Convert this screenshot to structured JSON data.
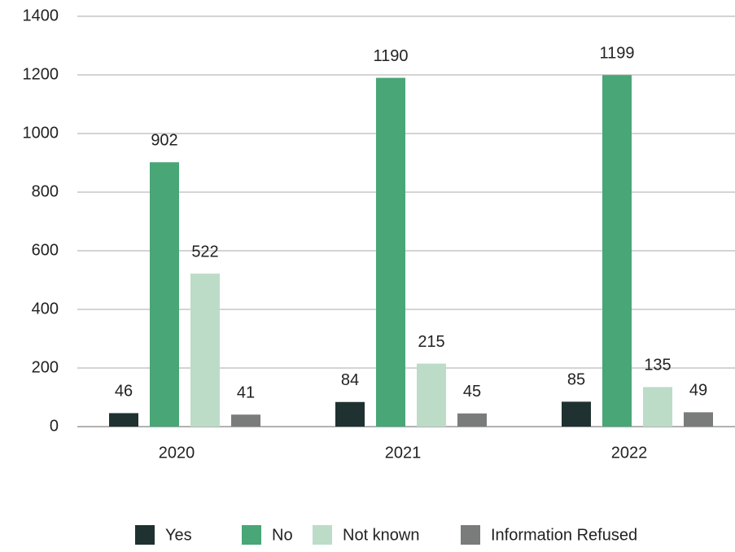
{
  "chart_data": {
    "type": "bar",
    "categories": [
      "2020",
      "2021",
      "2022"
    ],
    "series": [
      {
        "name": "Yes",
        "color": "#1f3131",
        "values": [
          46,
          84,
          85
        ]
      },
      {
        "name": "No",
        "color": "#48a677",
        "values": [
          902,
          1190,
          1199
        ]
      },
      {
        "name": "Not known",
        "color": "#bcdcc8",
        "values": [
          522,
          215,
          135
        ]
      },
      {
        "name": "Information Refused",
        "color": "#7a7c7c",
        "values": [
          41,
          45,
          49
        ]
      }
    ],
    "ylim": [
      0,
      1400
    ],
    "yticks": [
      0,
      200,
      400,
      600,
      800,
      1000,
      1200,
      1400
    ],
    "grid": true,
    "legend": "bottom"
  }
}
